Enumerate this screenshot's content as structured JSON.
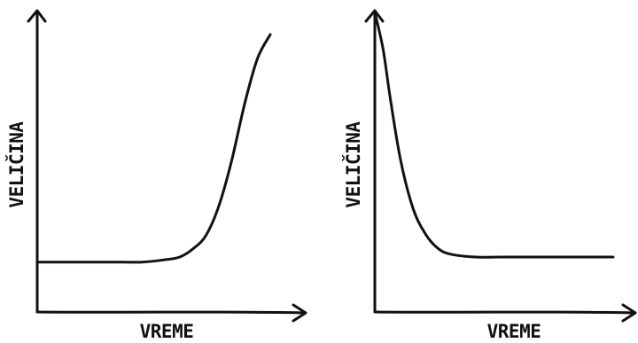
{
  "chart_data": [
    {
      "type": "line",
      "xlabel": "VREME",
      "ylabel": "VELIČINA",
      "grid": false,
      "xlim": [
        0,
        10
      ],
      "ylim": [
        0,
        10
      ],
      "series": [
        {
          "x": [
            0,
            1,
            2,
            3,
            4,
            5,
            5.5,
            6,
            6.5,
            7,
            7.5,
            8,
            8.5,
            9
          ],
          "values": [
            1.4,
            1.4,
            1.4,
            1.4,
            1.4,
            1.5,
            1.6,
            1.9,
            2.4,
            3.5,
            5.2,
            7.3,
            9.0,
            9.9
          ]
        }
      ]
    },
    {
      "type": "line",
      "xlabel": "VREME",
      "ylabel": "VELIČINA",
      "grid": false,
      "xlim": [
        0,
        10
      ],
      "ylim": [
        0,
        10
      ],
      "series": [
        {
          "x": [
            0,
            0.3,
            0.6,
            1,
            1.5,
            2,
            2.5,
            3,
            4,
            5,
            6,
            7,
            8,
            9.5
          ],
          "values": [
            10,
            8.8,
            7.0,
            4.9,
            3.2,
            2.3,
            1.8,
            1.6,
            1.5,
            1.5,
            1.5,
            1.5,
            1.5,
            1.5
          ]
        }
      ]
    }
  ]
}
